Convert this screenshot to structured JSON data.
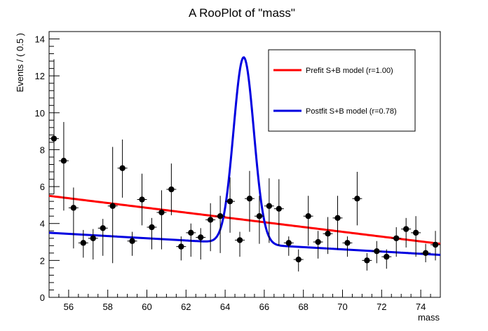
{
  "chart_data": {
    "type": "scatter",
    "title": "A RooPlot of \"mass\"",
    "xlabel": "mass",
    "ylabel": "Events / ( 0.5 )",
    "xlim": [
      55,
      75
    ],
    "ylim": [
      0,
      14.4
    ],
    "xticks": [
      56,
      58,
      60,
      62,
      64,
      66,
      68,
      70,
      72,
      74
    ],
    "yticks": [
      0,
      2,
      4,
      6,
      8,
      10,
      12,
      14
    ],
    "bin_width": 0.5,
    "legend_position": "top-right",
    "points": {
      "x": [
        55.25,
        55.75,
        56.25,
        56.75,
        57.25,
        57.75,
        58.25,
        58.75,
        59.25,
        59.75,
        60.25,
        60.75,
        61.25,
        61.75,
        62.25,
        62.75,
        63.25,
        63.75,
        64.25,
        64.75,
        65.25,
        65.75,
        66.25,
        66.75,
        67.25,
        67.75,
        68.25,
        68.75,
        69.25,
        69.75,
        70.25,
        70.75,
        71.25,
        71.75,
        72.25,
        72.75,
        73.25,
        73.75,
        74.25,
        74.75
      ],
      "y": [
        8.6,
        7.4,
        4.85,
        2.95,
        3.2,
        3.75,
        4.95,
        7.0,
        3.05,
        5.3,
        3.8,
        4.6,
        5.85,
        2.75,
        3.5,
        3.25,
        4.2,
        4.4,
        5.2,
        3.1,
        5.35,
        4.4,
        4.95,
        4.8,
        2.95,
        2.05,
        4.4,
        3.0,
        3.45,
        4.3,
        2.95,
        5.35,
        2.0,
        2.5,
        2.2,
        3.2,
        3.7,
        3.5,
        2.4,
        2.85
      ],
      "yerr_low": [
        3.0,
        2.7,
        2.2,
        0.8,
        1.15,
        1.5,
        3.1,
        1.6,
        0.8,
        1.4,
        1.2,
        2.0,
        1.4,
        0.75,
        1.3,
        1.2,
        1.7,
        2.0,
        1.7,
        0.9,
        1.8,
        1.5,
        2.0,
        2.0,
        0.7,
        0.65,
        1.6,
        0.9,
        1.1,
        1.7,
        0.75,
        1.45,
        0.55,
        0.65,
        0.65,
        1.0,
        1.0,
        1.3,
        0.5,
        0.85
      ],
      "yerr_high": [
        4.3,
        2.1,
        1.1,
        0.7,
        0.5,
        0.5,
        3.2,
        1.55,
        0.5,
        1.4,
        0.5,
        1.2,
        1.4,
        0.55,
        0.5,
        0.5,
        0.9,
        1.1,
        1.3,
        0.45,
        1.5,
        1.1,
        1.5,
        1.6,
        0.35,
        0.55,
        1.1,
        0.6,
        0.9,
        1.2,
        0.35,
        1.45,
        0.4,
        0.55,
        0.4,
        0.6,
        0.6,
        0.9,
        0.5,
        0.75
      ]
    },
    "series": [
      {
        "name": "Prefit S+B model (r=1.00)",
        "color": "#ff0000",
        "model": {
          "bkg_start": 5.5,
          "bkg_end": 2.9,
          "peak_height": 0,
          "mean": 65,
          "sigma": 0.5
        }
      },
      {
        "name": "Postfit S+B model (r=0.78)",
        "color": "#0000e0",
        "model": {
          "bkg_start": 3.5,
          "bkg_end": 2.3,
          "peak_height": 10.1,
          "mean": 64.95,
          "sigma": 0.52
        }
      }
    ]
  }
}
